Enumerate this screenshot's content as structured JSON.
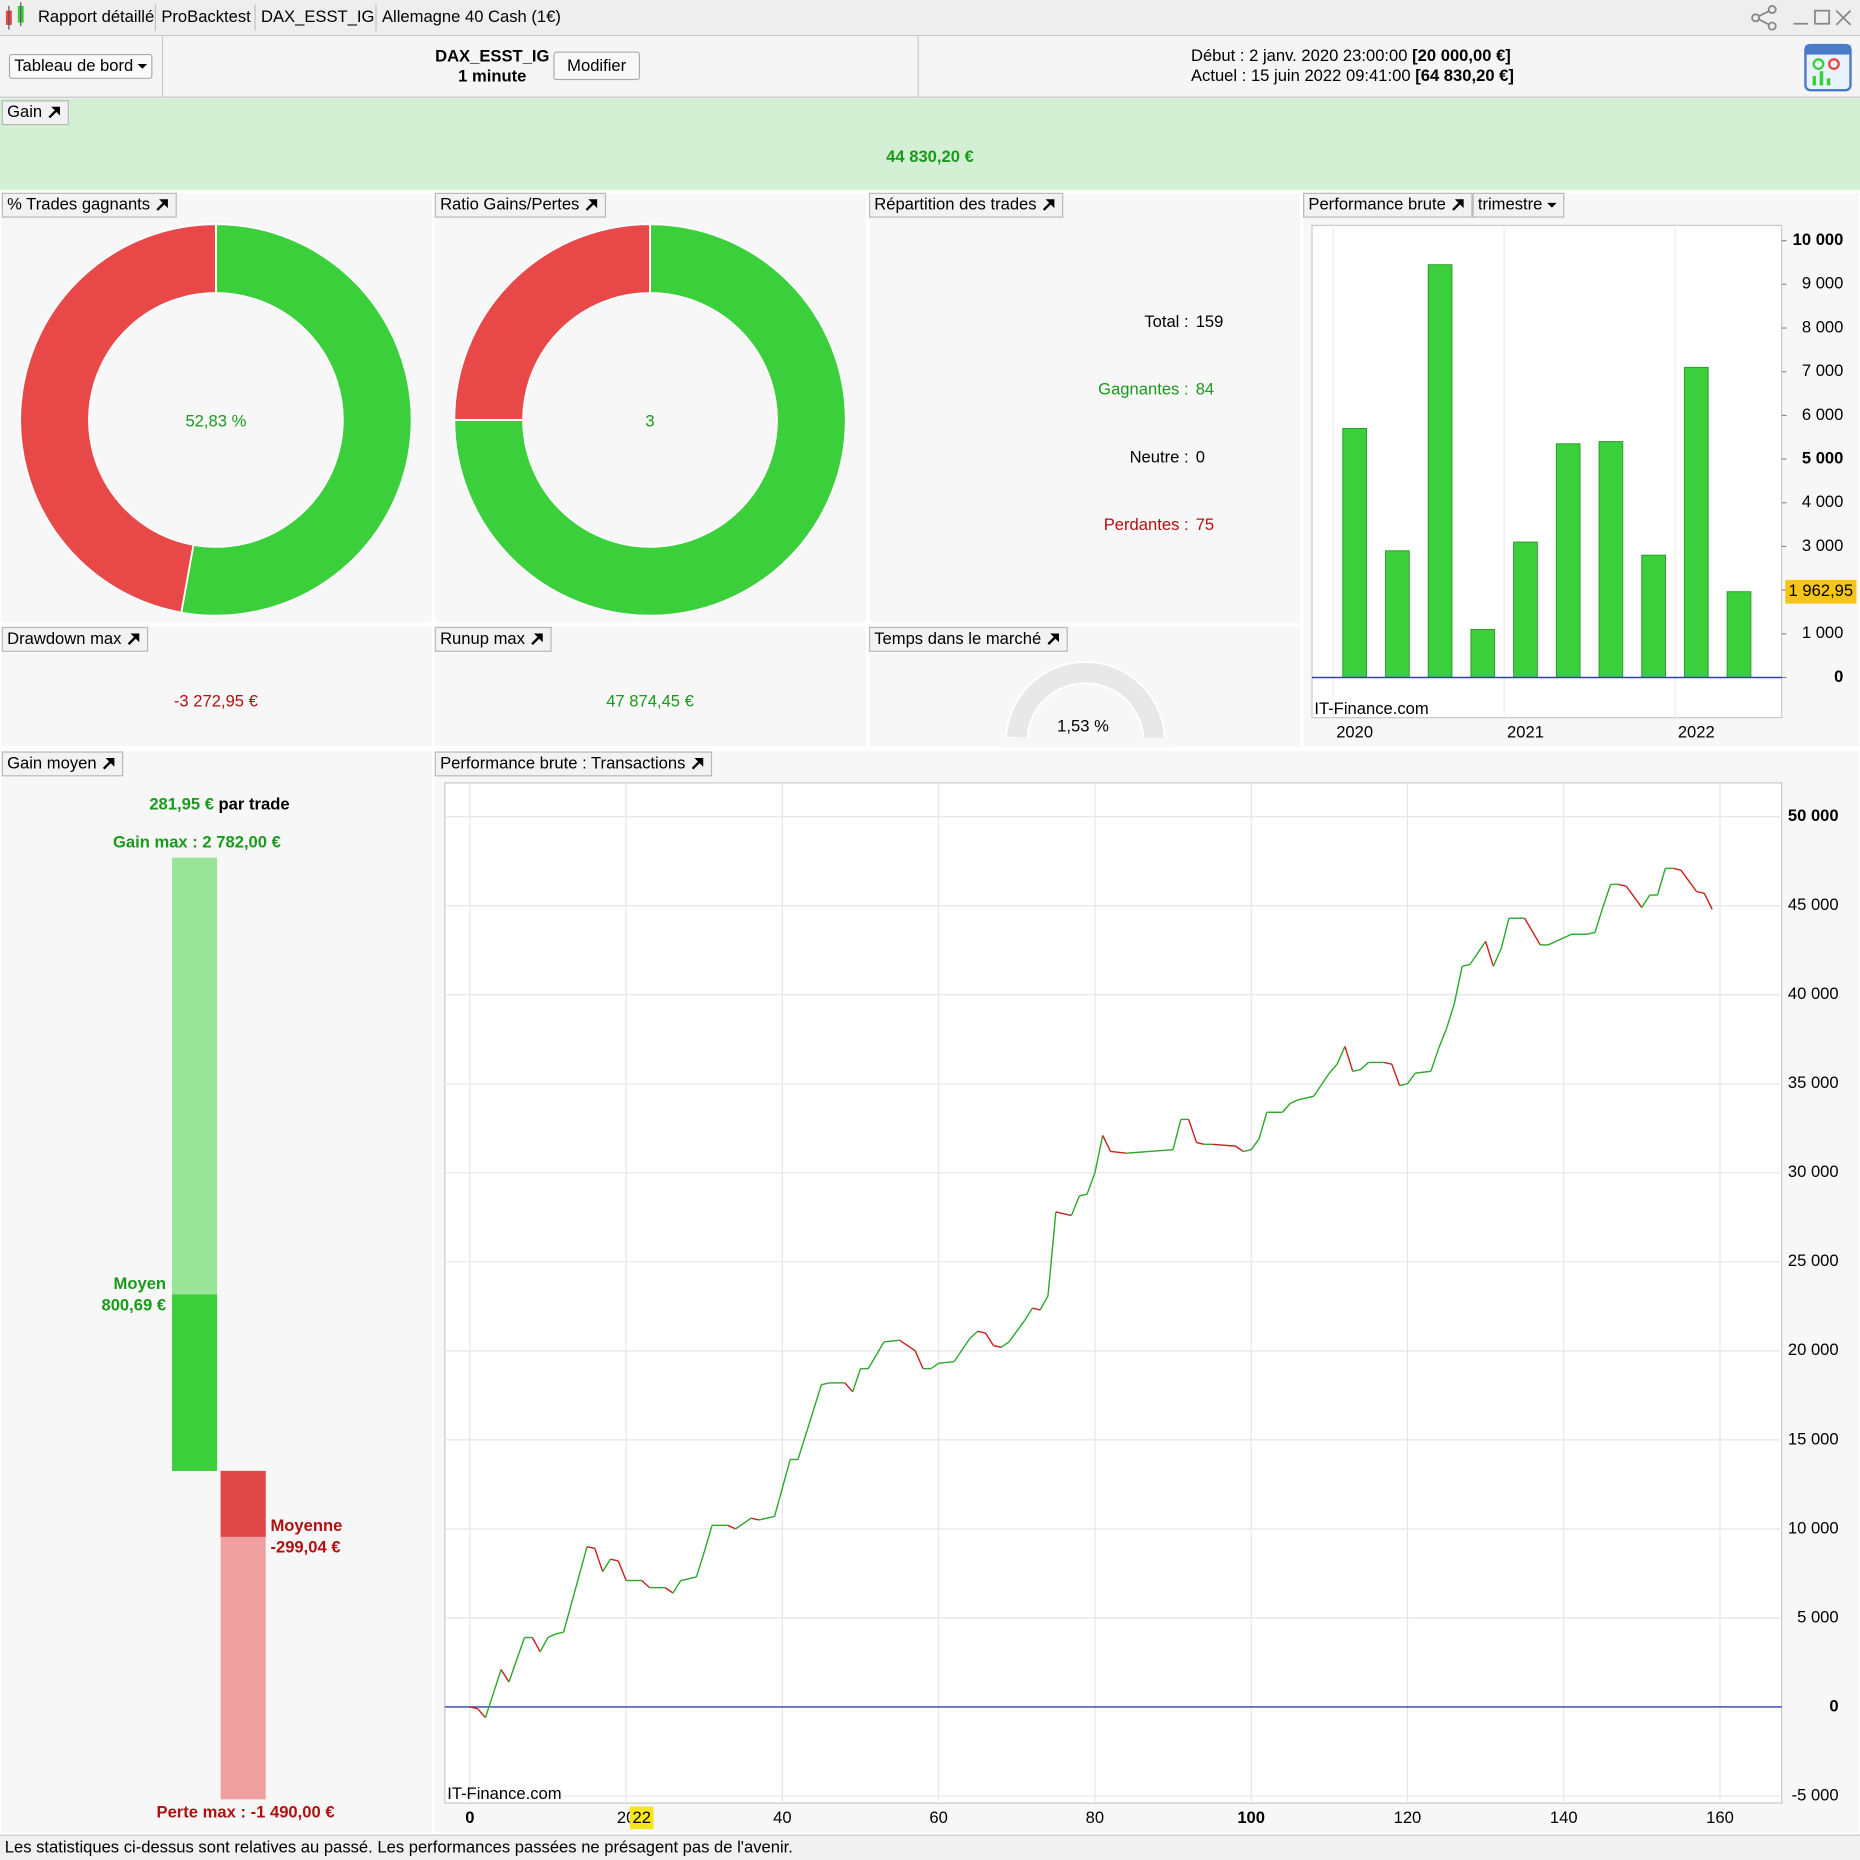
{
  "toolbar": {
    "tabs": [
      "Rapport détaillé",
      "ProBacktest",
      "DAX_ESST_IG",
      "Allemagne 40 Cash (1€)"
    ]
  },
  "header": {
    "dashboard": "Tableau de bord",
    "system": "DAX_ESST_IG",
    "timeframe": "1 minute",
    "button": "Modifier",
    "start_label": "Début :",
    "start_date": "2 janv. 2020 23:00:00",
    "start_capital": "[20 000,00 €]",
    "current_label": "Actuel :",
    "current_date": "15 juin 2022 09:41:00",
    "current_capital": "[64 830,20 €]"
  },
  "gain": {
    "title": "Gain",
    "value": "44 830,20 €"
  },
  "win_rate": {
    "title": "% Trades gagnants",
    "value": 52.83,
    "value_label": "52,83 %",
    "color": "#3ccf3c",
    "rest_color": "#e84848"
  },
  "ratio": {
    "title": "Ratio Gains/Pertes",
    "value": 3,
    "color": "#3ccf3c",
    "rest_color": "#e84848"
  },
  "distribution": {
    "title": "Répartition des trades",
    "rows": [
      {
        "label": "Total :",
        "value": 159,
        "color": "#000000"
      },
      {
        "label": "Gagnantes :",
        "value": 84,
        "color": "#1a9a1a"
      },
      {
        "label": "Neutre :",
        "value": 0,
        "color": "#000000"
      },
      {
        "label": "Perdantes :",
        "value": 75,
        "color": "#b01010"
      }
    ]
  },
  "drawdown": {
    "title": "Drawdown max",
    "value": "-3 272,95 €"
  },
  "runup": {
    "title": "Runup max",
    "value": "47 874,45 €"
  },
  "time_in_market": {
    "title": "Temps dans le marché",
    "value": 1.53,
    "value_label": "1,53 %"
  },
  "avg_gain": {
    "title": "Gain moyen",
    "value": 281.95,
    "value_label": "281,95 €",
    "suffix": "par trade",
    "gain_max": {
      "label": "Gain max :",
      "value": 2782,
      "value_label": "2 782,00 €"
    },
    "avg_win": {
      "label": "Moyen",
      "value": 800.69,
      "value_label": "800,69 €"
    },
    "avg_loss": {
      "label": "Moyenne",
      "value": -299.04,
      "value_label": "-299,04 €"
    },
    "loss_max": {
      "label": "Perte max :",
      "value": -1490,
      "value_label": "-1 490,00 €"
    }
  },
  "chart_data": [
    {
      "type": "bar",
      "title": "Performance brute",
      "period": "trimestre",
      "watermark": "IT-Finance.com",
      "categories": [
        "2020",
        null,
        null,
        null,
        "2021",
        null,
        null,
        null,
        "2022",
        null
      ],
      "values": [
        5700,
        2900,
        9450,
        1100,
        3100,
        5350,
        5400,
        2800,
        7100,
        1962.95
      ],
      "value_labels": [
        null,
        null,
        null,
        null,
        null,
        null,
        null,
        null,
        null,
        "1 962,95"
      ],
      "color": "#3ccf3c",
      "ylim": [
        -920,
        10350
      ],
      "yticks": [
        {
          "value": 0,
          "label": "0"
        },
        {
          "value": 1000,
          "label": "1 000"
        },
        {
          "value": 2000,
          "label": "2 000"
        },
        {
          "value": 3000,
          "label": "3 000"
        },
        {
          "value": 4000,
          "label": "4 000"
        },
        {
          "value": 5000,
          "label": "5 000"
        },
        {
          "value": 6000,
          "label": "6 000"
        },
        {
          "value": 7000,
          "label": "7 000"
        },
        {
          "value": 8000,
          "label": "8 000"
        },
        {
          "value": 9000,
          "label": "9 000"
        },
        {
          "value": 10000,
          "label": "10 000"
        }
      ]
    },
    {
      "type": "line",
      "title": "Performance brute : Transactions",
      "watermark": "IT-Finance.com",
      "cursor": 22,
      "grid": true,
      "x": [
        0,
        1,
        2,
        4,
        5,
        7,
        8,
        9,
        10,
        11,
        12,
        15,
        16,
        17,
        18,
        19,
        20,
        22,
        23,
        25,
        26,
        27,
        29,
        30,
        31,
        33,
        34,
        36,
        37,
        39,
        41,
        42,
        45,
        46,
        48,
        49,
        50,
        51,
        53,
        55,
        57,
        58,
        59,
        60,
        62,
        64,
        65,
        66,
        67,
        68,
        69,
        71,
        72,
        73,
        74,
        75,
        77,
        78,
        79,
        80,
        81,
        82,
        84,
        87,
        90,
        91,
        92,
        93,
        94,
        95,
        98,
        99,
        100,
        101,
        102,
        104,
        105,
        106,
        108,
        110,
        111,
        112,
        113,
        114,
        115,
        117,
        118,
        119,
        120,
        121,
        123,
        124,
        125,
        126,
        127,
        128,
        130,
        131,
        132,
        133,
        135,
        137,
        138,
        139,
        141,
        143,
        144,
        145,
        146,
        147,
        148,
        150,
        151,
        152,
        153,
        154,
        155,
        157,
        158,
        159
      ],
      "series": [
        {
          "name": "Performance",
          "color": "#2ea82e",
          "down_color": "#cc2020",
          "values": [
            0,
            -100,
            -600,
            2100,
            1400,
            3900,
            3900,
            3100,
            3900,
            4100,
            4200,
            9000,
            8900,
            7600,
            8300,
            8200,
            7100,
            7100,
            6700,
            6700,
            6400,
            7100,
            7300,
            8700,
            10200,
            10200,
            10000,
            10600,
            10500,
            10700,
            13900,
            13900,
            18100,
            18200,
            18200,
            17700,
            19000,
            19000,
            20500,
            20600,
            20000,
            19000,
            19000,
            19300,
            19400,
            20700,
            21100,
            21000,
            20300,
            20200,
            20500,
            21700,
            22400,
            22300,
            23100,
            27800,
            27600,
            28700,
            28800,
            30000,
            32100,
            31200,
            31100,
            31200,
            31300,
            33000,
            33000,
            31700,
            31600,
            31600,
            31500,
            31200,
            31300,
            31900,
            33400,
            33400,
            33900,
            34100,
            34300,
            35600,
            36100,
            37100,
            35700,
            35800,
            36200,
            36200,
            36100,
            34900,
            35000,
            35600,
            35700,
            37000,
            38100,
            39500,
            41600,
            41700,
            43000,
            41600,
            42600,
            44300,
            44300,
            42800,
            42800,
            43000,
            43400,
            43400,
            43500,
            44900,
            46200,
            46200,
            46100,
            44900,
            45600,
            45600,
            47100,
            47100,
            47000,
            45800,
            45700,
            44800
          ]
        }
      ],
      "xlim": [
        -3.2,
        167.9
      ],
      "ylim": [
        -5400,
        51900
      ],
      "xticks": [
        0,
        20,
        40,
        60,
        80,
        100,
        120,
        140,
        160
      ],
      "yticks": [
        {
          "value": -5000,
          "label": "-5 000"
        },
        {
          "value": 0,
          "label": "0"
        },
        {
          "value": 5000,
          "label": "5 000"
        },
        {
          "value": 10000,
          "label": "10 000"
        },
        {
          "value": 15000,
          "label": "15 000"
        },
        {
          "value": 20000,
          "label": "20 000"
        },
        {
          "value": 25000,
          "label": "25 000"
        },
        {
          "value": 30000,
          "label": "30 000"
        },
        {
          "value": 35000,
          "label": "35 000"
        },
        {
          "value": 40000,
          "label": "40 000"
        },
        {
          "value": 45000,
          "label": "45 000"
        },
        {
          "value": 50000,
          "label": "50 000"
        }
      ]
    }
  ],
  "footer": "Les statistiques ci-dessus sont relatives au passé. Les performances passées ne présagent pas de l'avenir."
}
